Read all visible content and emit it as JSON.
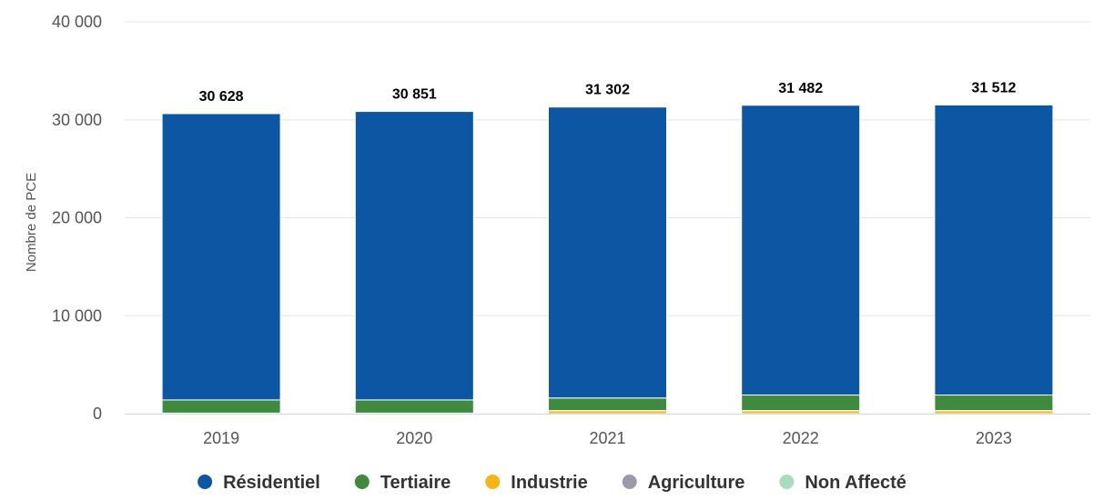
{
  "chart_data": {
    "type": "bar",
    "stacked": true,
    "title": "",
    "xlabel": "",
    "ylabel": "Nombre de PCE",
    "ylim": [
      0,
      40000
    ],
    "yticks": [
      0,
      10000,
      20000,
      30000,
      40000
    ],
    "ytick_labels": [
      "0",
      "10 000",
      "20 000",
      "30 000",
      "40 000"
    ],
    "grid": true,
    "legend_position": "bottom",
    "categories": [
      "2019",
      "2020",
      "2021",
      "2022",
      "2023"
    ],
    "totals": [
      30628,
      30851,
      31302,
      31482,
      31512
    ],
    "total_labels": [
      "30 628",
      "30 851",
      "31 302",
      "31 482",
      "31 512"
    ],
    "series": [
      {
        "name": "Industrie",
        "color": "#f5b41a",
        "values": [
          40,
          40,
          300,
          300,
          300
        ]
      },
      {
        "name": "Agriculture",
        "color": "#9a9aa8",
        "values": [
          10,
          10,
          10,
          10,
          10
        ]
      },
      {
        "name": "Non Affecté",
        "color": "#a8dcc0",
        "values": [
          5,
          5,
          5,
          5,
          5
        ]
      },
      {
        "name": "Tertiaire",
        "color": "#3f8a3f",
        "values": [
          1345,
          1345,
          1285,
          1585,
          1585
        ]
      },
      {
        "name": "Résidentiel",
        "color": "#0c56a3",
        "values": [
          29228,
          29451,
          29702,
          29582,
          29612
        ]
      }
    ],
    "legend": [
      {
        "name": "Résidentiel",
        "color": "#0c56a3"
      },
      {
        "name": "Tertiaire",
        "color": "#3f8a3f"
      },
      {
        "name": "Industrie",
        "color": "#f5b41a"
      },
      {
        "name": "Agriculture",
        "color": "#9a9aa8"
      },
      {
        "name": "Non Affecté",
        "color": "#a8dcc0"
      }
    ]
  }
}
